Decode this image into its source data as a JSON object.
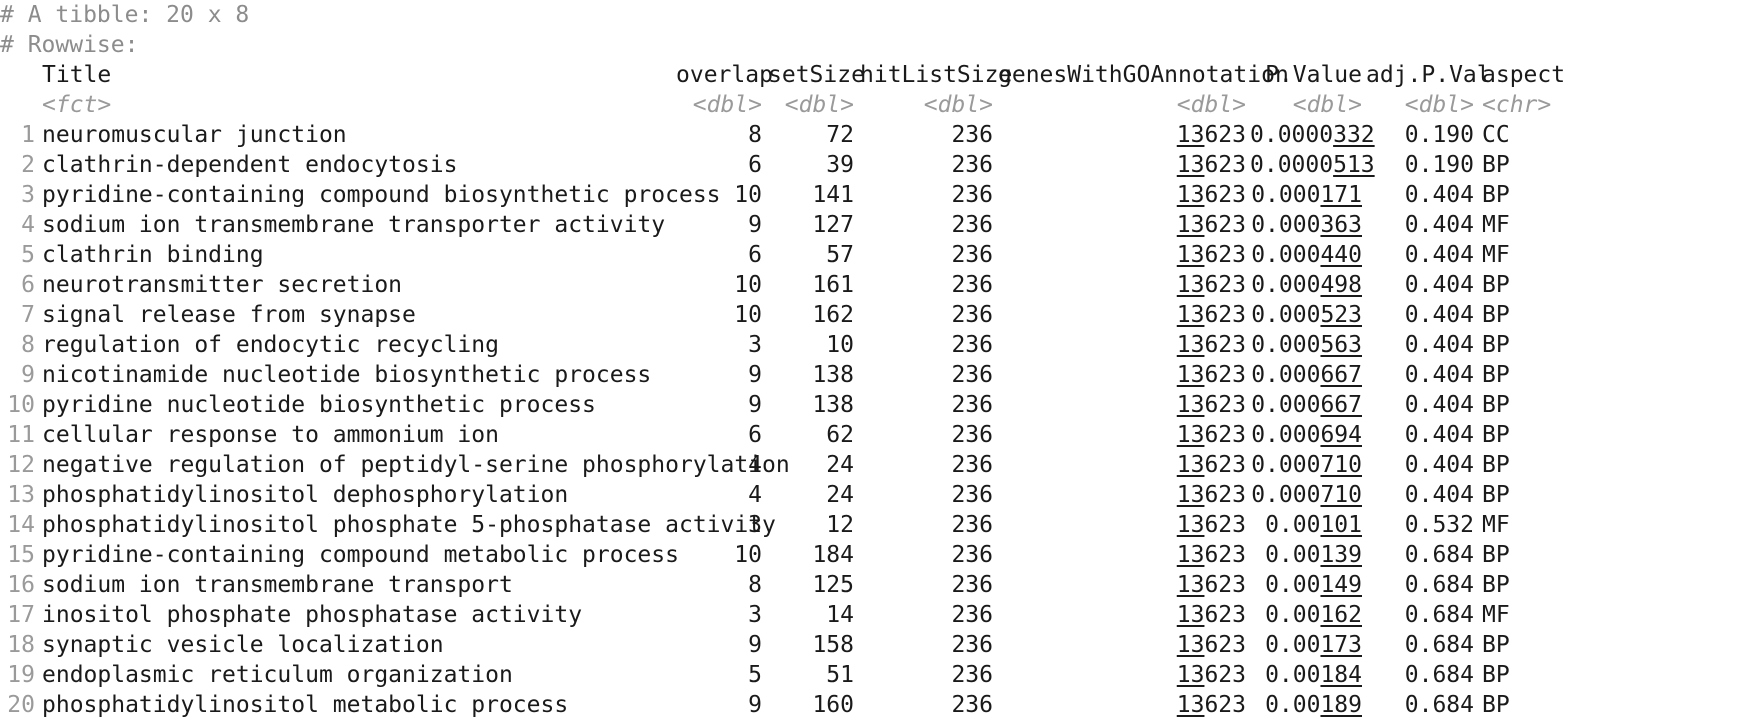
{
  "comments": [
    "# A tibble: 20 x 8",
    "# Rowwise:"
  ],
  "columns": [
    {
      "name": "Title",
      "type": "<fct>"
    },
    {
      "name": "overlap",
      "type": "<dbl>"
    },
    {
      "name": "setSize",
      "type": "<dbl>"
    },
    {
      "name": "hitListSize",
      "type": "<dbl>"
    },
    {
      "name": "genesWithGOAnnotation",
      "type": "<dbl>"
    },
    {
      "name": "P.Value",
      "type": "<dbl>"
    },
    {
      "name": "adj.P.Val",
      "type": "<dbl>"
    },
    {
      "name": "aspect",
      "type": "<chr>"
    }
  ],
  "rows": [
    {
      "n": "1",
      "title": "neuromuscular junction",
      "overlap": "8",
      "setSize": "72",
      "hitListSize": "236",
      "genes": "13623",
      "pvalue": "0.0000332",
      "adjp": "0.190",
      "aspect": "CC"
    },
    {
      "n": "2",
      "title": "clathrin-dependent endocytosis",
      "overlap": "6",
      "setSize": "39",
      "hitListSize": "236",
      "genes": "13623",
      "pvalue": "0.0000513",
      "adjp": "0.190",
      "aspect": "BP"
    },
    {
      "n": "3",
      "title": "pyridine-containing compound biosynthetic process",
      "overlap": "10",
      "setSize": "141",
      "hitListSize": "236",
      "genes": "13623",
      "pvalue": "0.000171",
      "adjp": "0.404",
      "aspect": "BP"
    },
    {
      "n": "4",
      "title": "sodium ion transmembrane transporter activity",
      "overlap": "9",
      "setSize": "127",
      "hitListSize": "236",
      "genes": "13623",
      "pvalue": "0.000363",
      "adjp": "0.404",
      "aspect": "MF"
    },
    {
      "n": "5",
      "title": "clathrin binding",
      "overlap": "6",
      "setSize": "57",
      "hitListSize": "236",
      "genes": "13623",
      "pvalue": "0.000440",
      "adjp": "0.404",
      "aspect": "MF"
    },
    {
      "n": "6",
      "title": "neurotransmitter secretion",
      "overlap": "10",
      "setSize": "161",
      "hitListSize": "236",
      "genes": "13623",
      "pvalue": "0.000498",
      "adjp": "0.404",
      "aspect": "BP"
    },
    {
      "n": "7",
      "title": "signal release from synapse",
      "overlap": "10",
      "setSize": "162",
      "hitListSize": "236",
      "genes": "13623",
      "pvalue": "0.000523",
      "adjp": "0.404",
      "aspect": "BP"
    },
    {
      "n": "8",
      "title": "regulation of endocytic recycling",
      "overlap": "3",
      "setSize": "10",
      "hitListSize": "236",
      "genes": "13623",
      "pvalue": "0.000563",
      "adjp": "0.404",
      "aspect": "BP"
    },
    {
      "n": "9",
      "title": "nicotinamide nucleotide biosynthetic process",
      "overlap": "9",
      "setSize": "138",
      "hitListSize": "236",
      "genes": "13623",
      "pvalue": "0.000667",
      "adjp": "0.404",
      "aspect": "BP"
    },
    {
      "n": "10",
      "title": "pyridine nucleotide biosynthetic process",
      "overlap": "9",
      "setSize": "138",
      "hitListSize": "236",
      "genes": "13623",
      "pvalue": "0.000667",
      "adjp": "0.404",
      "aspect": "BP"
    },
    {
      "n": "11",
      "title": "cellular response to ammonium ion",
      "overlap": "6",
      "setSize": "62",
      "hitListSize": "236",
      "genes": "13623",
      "pvalue": "0.000694",
      "adjp": "0.404",
      "aspect": "BP"
    },
    {
      "n": "12",
      "title": "negative regulation of peptidyl-serine phosphorylation",
      "overlap": "4",
      "setSize": "24",
      "hitListSize": "236",
      "genes": "13623",
      "pvalue": "0.000710",
      "adjp": "0.404",
      "aspect": "BP"
    },
    {
      "n": "13",
      "title": "phosphatidylinositol dephosphorylation",
      "overlap": "4",
      "setSize": "24",
      "hitListSize": "236",
      "genes": "13623",
      "pvalue": "0.000710",
      "adjp": "0.404",
      "aspect": "BP"
    },
    {
      "n": "14",
      "title": "phosphatidylinositol phosphate 5-phosphatase activity",
      "overlap": "3",
      "setSize": "12",
      "hitListSize": "236",
      "genes": "13623",
      "pvalue": "0.00101",
      "adjp": "0.532",
      "aspect": "MF"
    },
    {
      "n": "15",
      "title": "pyridine-containing compound metabolic process",
      "overlap": "10",
      "setSize": "184",
      "hitListSize": "236",
      "genes": "13623",
      "pvalue": "0.00139",
      "adjp": "0.684",
      "aspect": "BP"
    },
    {
      "n": "16",
      "title": "sodium ion transmembrane transport",
      "overlap": "8",
      "setSize": "125",
      "hitListSize": "236",
      "genes": "13623",
      "pvalue": "0.00149",
      "adjp": "0.684",
      "aspect": "BP"
    },
    {
      "n": "17",
      "title": "inositol phosphate phosphatase activity",
      "overlap": "3",
      "setSize": "14",
      "hitListSize": "236",
      "genes": "13623",
      "pvalue": "0.00162",
      "adjp": "0.684",
      "aspect": "MF"
    },
    {
      "n": "18",
      "title": "synaptic vesicle localization",
      "overlap": "9",
      "setSize": "158",
      "hitListSize": "236",
      "genes": "13623",
      "pvalue": "0.00173",
      "adjp": "0.684",
      "aspect": "BP"
    },
    {
      "n": "19",
      "title": "endoplasmic reticulum organization",
      "overlap": "5",
      "setSize": "51",
      "hitListSize": "236",
      "genes": "13623",
      "pvalue": "0.00184",
      "adjp": "0.684",
      "aspect": "BP"
    },
    {
      "n": "20",
      "title": "phosphatidylinositol metabolic process",
      "overlap": "9",
      "setSize": "160",
      "hitListSize": "236",
      "genes": "13623",
      "pvalue": "0.00189",
      "adjp": "0.684",
      "aspect": "BP"
    }
  ]
}
